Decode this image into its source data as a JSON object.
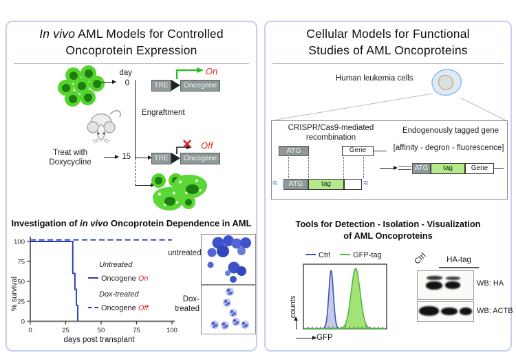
{
  "colors": {
    "panel_border": "#c7cdee",
    "survival_blue": "#2b38c0",
    "state_red": "#e62020",
    "cell_green": "#55d42e",
    "nucleus_green": "#1d7c12",
    "construct_gray": "#8f9999",
    "tag_green": "#b5ea8a",
    "flow_blue": "#4050c0",
    "flow_green": "#4cb843",
    "on_arrow_green": "#1fc41f"
  },
  "icons": {
    "cross_glyph": "✕",
    "squiggle_glyph": "≈"
  },
  "left_panel": {
    "title": {
      "italic": "In vivo",
      "rest": " AML Models for Controlled",
      "line2": "Oncoprotein Expression"
    },
    "schematic": {
      "day_label": "day",
      "day_start": "0",
      "day_treat": "15",
      "engraftment": "Engraftment",
      "treat_line1": "Treat with",
      "treat_line2": "Doxycycline",
      "construct_on": {
        "promoter": "TRE",
        "gene": "Oncogene",
        "state": "On"
      },
      "construct_off": {
        "promoter": "TRE",
        "gene": "Oncogene",
        "state": "Off"
      }
    },
    "section_title": {
      "pre": "Investigation of ",
      "italic": "in vivo",
      "post": " Oncoprotein Dependence in AML"
    },
    "survival_legend": {
      "group1_name": "Untreated",
      "group1_pre": "Oncogene ",
      "group1_state": "On",
      "group2_name": "Dox-treated",
      "group2_pre": "Oncogene ",
      "group2_state": "Off"
    },
    "micrographs": {
      "top_label": "untreated",
      "bottom_label_line1": "Dox-",
      "bottom_label_line2": "treated"
    }
  },
  "right_panel": {
    "title": {
      "line1": "Cellular Models for Functional",
      "line2": "Studies of AML Oncoproteins"
    },
    "cells_label": "Human leukemia cells",
    "crispr": {
      "heading_line1": "CRISPR/Cas9-mediated",
      "heading_line2": "recombination",
      "atg": "ATG",
      "gene": "Gene",
      "tag": "tag",
      "result_heading": "Endogenously tagged gene",
      "result_subheading": "[affinity - degron - fluorescence]"
    },
    "tools_title": {
      "line1": "Tools for Detection - Isolation - Visualization",
      "line2": "of AML Oncoproteins"
    },
    "flow": {
      "legend1": "Ctrl",
      "legend2": "GFP-tag",
      "xlabel": "GFP",
      "ylabel": "counts"
    },
    "blot": {
      "lane1": "Ctrl",
      "lane23": "HA-tag",
      "row1_label": "WB: HA",
      "row2_label": "WB: ACTB"
    }
  },
  "chart_data": [
    {
      "id": "survival",
      "type": "line",
      "title": "Investigation of in vivo Oncoprotein Dependence in AML",
      "xlabel": "days post transplant",
      "ylabel": "% survival",
      "xlim": [
        0,
        100
      ],
      "ylim": [
        0,
        105
      ],
      "xticks": [
        0,
        25,
        50,
        75,
        100
      ],
      "yticks": [
        0,
        25,
        50,
        75,
        100
      ],
      "grid": false,
      "legend_position": "inside-right",
      "series": [
        {
          "name": "Untreated (Oncogene On)",
          "style": "solid",
          "color": "#2b38c0",
          "x": [
            0,
            30,
            30,
            31.5,
            31.5,
            32.5,
            32.5,
            33.5,
            33.5
          ],
          "y": [
            100,
            100,
            60,
            60,
            40,
            40,
            20,
            20,
            0
          ]
        },
        {
          "name": "Dox-treated (Oncogene Off)",
          "style": "dashed",
          "color": "#2b38c0",
          "x": [
            0,
            100
          ],
          "y": [
            102,
            102
          ]
        }
      ]
    },
    {
      "id": "flow",
      "type": "area",
      "xlabel": "GFP",
      "ylabel": "counts",
      "series": [
        {
          "name": "Ctrl",
          "color": "#4050c0",
          "fill": "#c5cae9",
          "peak_center": 0.33,
          "peak_sigma": 0.028,
          "peak_height": 0.94
        },
        {
          "name": "GFP-tag",
          "color": "#4cb843",
          "fill": "#a3e276",
          "peak_center": 0.63,
          "peak_sigma": 0.055,
          "peak_height": 0.97
        }
      ]
    }
  ]
}
